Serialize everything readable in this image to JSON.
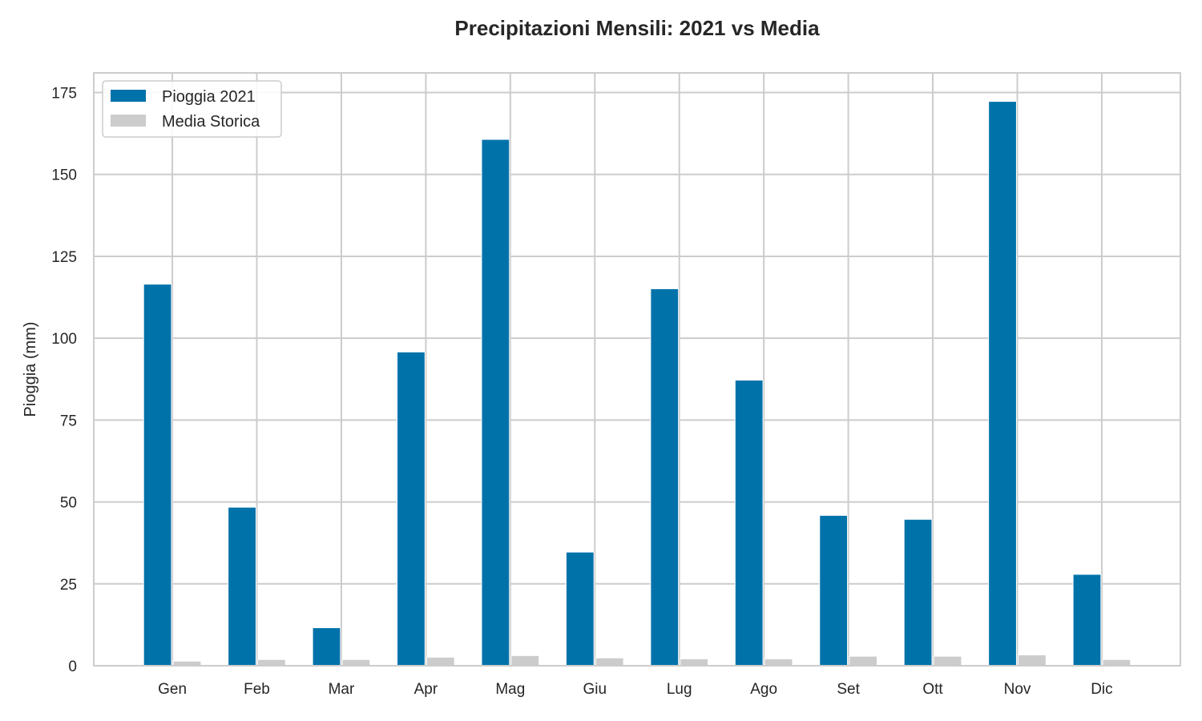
{
  "chart_data": {
    "type": "bar",
    "title": "Precipitazioni Mensili: 2021 vs Media",
    "xlabel": "",
    "ylabel": "Pioggia (mm)",
    "categories": [
      "Gen",
      "Feb",
      "Mar",
      "Apr",
      "Mag",
      "Giu",
      "Lug",
      "Ago",
      "Set",
      "Ott",
      "Nov",
      "Dic"
    ],
    "series": [
      {
        "name": "Pioggia 2021",
        "color": "#0072aa",
        "values": [
          116.5,
          48.4,
          11.6,
          95.8,
          160.7,
          34.7,
          115.1,
          87.2,
          45.9,
          44.7,
          172.3,
          27.9
        ]
      },
      {
        "name": "Media Storica",
        "color": "#cccccc",
        "values": [
          1.4,
          1.9,
          1.9,
          2.6,
          3.1,
          2.4,
          2.1,
          2.1,
          2.9,
          2.9,
          3.3,
          1.9
        ]
      }
    ],
    "ylim": [
      0,
      181
    ],
    "yticks": [
      0,
      25,
      50,
      75,
      100,
      125,
      150,
      175
    ],
    "grid": true,
    "legend_position": "upper left"
  }
}
